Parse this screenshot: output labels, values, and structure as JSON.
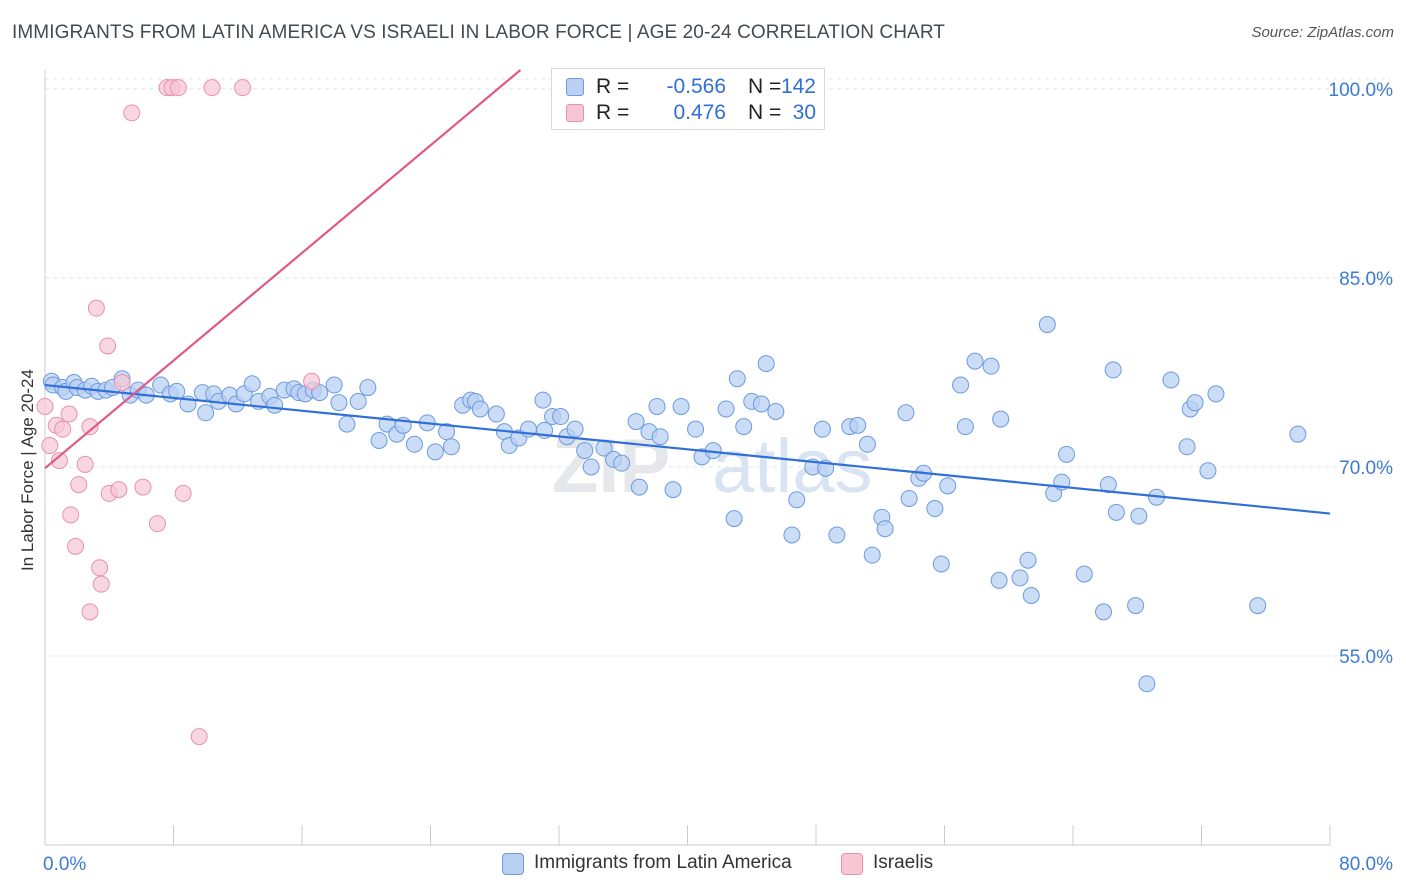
{
  "header": {
    "title": "IMMIGRANTS FROM LATIN AMERICA VS ISRAELI IN LABOR FORCE | AGE 20-24 CORRELATION CHART",
    "source": "Source: ZipAtlas.com"
  },
  "legend_box": {
    "rows": [
      {
        "r_label": "R =",
        "r_value": "-0.566",
        "n_label": "N =",
        "n_value": "142"
      },
      {
        "r_label": "R =",
        "r_value": "0.476",
        "n_label": "N =",
        "n_value": "30"
      }
    ]
  },
  "bottom_legend": [
    {
      "label": "Immigrants from Latin America"
    },
    {
      "label": "Israelis"
    }
  ],
  "colors": {
    "blue_fill": "#b9d0f3",
    "blue_stroke": "#6b9be0",
    "blue_line": "#2f6fd6",
    "pink_fill": "#f7c6d4",
    "pink_stroke": "#e890ad",
    "pink_line": "#e0588a",
    "tick_label": "#3d7bd4",
    "grid": "#e1e4e8",
    "axis": "#c8ccd2"
  },
  "chart_data": {
    "type": "scatter",
    "title": "IMMIGRANTS FROM LATIN AMERICA VS ISRAELI IN LABOR FORCE | AGE 20-24 CORRELATION CHART",
    "xlabel": "",
    "ylabel": "In Labor Force | Age 20-24",
    "xlim": [
      0,
      80
    ],
    "ylim": [
      40,
      101.5
    ],
    "x_tick_labels": [
      {
        "value": 0,
        "label": "0.0%"
      },
      {
        "value": 80,
        "label": "80.0%"
      }
    ],
    "y_ticks": [
      {
        "value": 100,
        "label": "100.0%"
      },
      {
        "value": 85,
        "label": "85.0%"
      },
      {
        "value": 70,
        "label": "70.0%"
      },
      {
        "value": 55,
        "label": "55.0%"
      }
    ],
    "grid": true,
    "watermark": "ZIPatlas",
    "series": [
      {
        "name": "Immigrants from Latin America",
        "r": -0.566,
        "n": 142,
        "trend": {
          "x": [
            0,
            80
          ],
          "y": [
            76.5,
            66.3
          ]
        },
        "points": [
          [
            0.4,
            76.8
          ],
          [
            0.5,
            76.5
          ],
          [
            1.1,
            76.3
          ],
          [
            1.3,
            76.0
          ],
          [
            1.8,
            76.7
          ],
          [
            2.0,
            76.3
          ],
          [
            2.5,
            76.1
          ],
          [
            2.9,
            76.4
          ],
          [
            3.3,
            76.0
          ],
          [
            3.8,
            76.1
          ],
          [
            4.2,
            76.3
          ],
          [
            4.8,
            77.0
          ],
          [
            5.3,
            75.7
          ],
          [
            5.8,
            76.1
          ],
          [
            6.3,
            75.7
          ],
          [
            7.2,
            76.5
          ],
          [
            7.8,
            75.8
          ],
          [
            8.2,
            76.0
          ],
          [
            8.9,
            75.0
          ],
          [
            9.8,
            75.9
          ],
          [
            10.0,
            74.3
          ],
          [
            10.5,
            75.8
          ],
          [
            10.8,
            75.2
          ],
          [
            11.5,
            75.7
          ],
          [
            11.9,
            75.0
          ],
          [
            12.4,
            75.8
          ],
          [
            12.9,
            76.6
          ],
          [
            13.3,
            75.2
          ],
          [
            14.0,
            75.6
          ],
          [
            14.3,
            74.9
          ],
          [
            14.9,
            76.1
          ],
          [
            15.5,
            76.2
          ],
          [
            15.8,
            75.9
          ],
          [
            16.2,
            75.8
          ],
          [
            16.7,
            76.1
          ],
          [
            17.1,
            75.9
          ],
          [
            18.0,
            76.5
          ],
          [
            18.3,
            75.1
          ],
          [
            18.8,
            73.4
          ],
          [
            19.5,
            75.2
          ],
          [
            20.1,
            76.3
          ],
          [
            20.8,
            72.1
          ],
          [
            21.3,
            73.4
          ],
          [
            21.9,
            72.6
          ],
          [
            22.3,
            73.3
          ],
          [
            23.0,
            71.8
          ],
          [
            23.8,
            73.5
          ],
          [
            24.3,
            71.2
          ],
          [
            25.0,
            72.8
          ],
          [
            25.3,
            71.6
          ],
          [
            26.0,
            74.9
          ],
          [
            26.5,
            75.3
          ],
          [
            26.8,
            75.2
          ],
          [
            27.1,
            74.6
          ],
          [
            28.1,
            74.2
          ],
          [
            28.6,
            72.8
          ],
          [
            28.9,
            71.7
          ],
          [
            29.5,
            72.3
          ],
          [
            30.1,
            73.0
          ],
          [
            31.0,
            75.3
          ],
          [
            31.1,
            72.9
          ],
          [
            31.6,
            74.0
          ],
          [
            32.1,
            74.0
          ],
          [
            32.5,
            72.4
          ],
          [
            33.0,
            73.0
          ],
          [
            33.6,
            71.3
          ],
          [
            34.0,
            70.0
          ],
          [
            34.8,
            71.5
          ],
          [
            35.4,
            70.6
          ],
          [
            35.9,
            70.3
          ],
          [
            36.8,
            73.6
          ],
          [
            37.0,
            68.4
          ],
          [
            37.6,
            72.8
          ],
          [
            38.1,
            74.8
          ],
          [
            38.3,
            72.4
          ],
          [
            39.1,
            68.2
          ],
          [
            39.6,
            74.8
          ],
          [
            40.5,
            73.0
          ],
          [
            40.9,
            70.8
          ],
          [
            41.6,
            71.3
          ],
          [
            42.4,
            74.6
          ],
          [
            42.9,
            65.9
          ],
          [
            43.1,
            77.0
          ],
          [
            43.5,
            73.2
          ],
          [
            44.0,
            75.2
          ],
          [
            44.6,
            75.0
          ],
          [
            44.9,
            78.2
          ],
          [
            45.5,
            74.4
          ],
          [
            46.5,
            64.6
          ],
          [
            46.8,
            67.4
          ],
          [
            47.8,
            70.0
          ],
          [
            48.4,
            73.0
          ],
          [
            48.6,
            69.9
          ],
          [
            49.3,
            64.6
          ],
          [
            50.1,
            73.2
          ],
          [
            50.6,
            73.3
          ],
          [
            51.2,
            71.8
          ],
          [
            51.5,
            63.0
          ],
          [
            52.1,
            66.0
          ],
          [
            52.3,
            65.1
          ],
          [
            53.6,
            74.3
          ],
          [
            53.8,
            67.5
          ],
          [
            54.4,
            69.1
          ],
          [
            54.7,
            69.5
          ],
          [
            55.4,
            66.7
          ],
          [
            55.8,
            62.3
          ],
          [
            56.2,
            68.5
          ],
          [
            57.0,
            76.5
          ],
          [
            57.3,
            73.2
          ],
          [
            57.9,
            78.4
          ],
          [
            58.9,
            78.0
          ],
          [
            59.4,
            61.0
          ],
          [
            59.5,
            73.8
          ],
          [
            60.7,
            61.2
          ],
          [
            61.2,
            62.6
          ],
          [
            61.4,
            59.8
          ],
          [
            62.4,
            81.3
          ],
          [
            62.8,
            67.9
          ],
          [
            63.3,
            68.8
          ],
          [
            63.6,
            71.0
          ],
          [
            64.7,
            61.5
          ],
          [
            65.9,
            58.5
          ],
          [
            66.2,
            68.6
          ],
          [
            66.5,
            77.7
          ],
          [
            66.7,
            66.4
          ],
          [
            67.9,
            59.0
          ],
          [
            68.1,
            66.1
          ],
          [
            68.6,
            52.8
          ],
          [
            69.2,
            67.6
          ],
          [
            70.1,
            76.9
          ],
          [
            71.1,
            71.6
          ],
          [
            71.3,
            74.6
          ],
          [
            71.6,
            75.1
          ],
          [
            72.4,
            69.7
          ],
          [
            72.9,
            75.8
          ],
          [
            75.5,
            59.0
          ],
          [
            78.0,
            72.6
          ]
        ]
      },
      {
        "name": "Israelis",
        "r": 0.476,
        "n": 30,
        "trend": {
          "x": [
            0,
            29.6
          ],
          "y": [
            69.9,
            101.5
          ]
        },
        "points": [
          [
            0.0,
            74.8
          ],
          [
            0.3,
            71.7
          ],
          [
            0.7,
            73.3
          ],
          [
            0.9,
            70.5
          ],
          [
            1.1,
            73.0
          ],
          [
            1.5,
            74.2
          ],
          [
            1.6,
            66.2
          ],
          [
            1.9,
            63.7
          ],
          [
            2.1,
            68.6
          ],
          [
            2.5,
            70.2
          ],
          [
            2.8,
            73.2
          ],
          [
            2.8,
            58.5
          ],
          [
            3.2,
            82.6
          ],
          [
            3.4,
            62.0
          ],
          [
            3.5,
            60.7
          ],
          [
            3.9,
            79.6
          ],
          [
            4.0,
            67.9
          ],
          [
            4.6,
            68.2
          ],
          [
            4.8,
            76.7
          ],
          [
            5.4,
            98.1
          ],
          [
            6.1,
            68.4
          ],
          [
            7.0,
            65.5
          ],
          [
            7.6,
            100.1
          ],
          [
            7.9,
            100.1
          ],
          [
            8.3,
            100.1
          ],
          [
            8.6,
            67.9
          ],
          [
            9.6,
            48.6
          ],
          [
            10.4,
            100.1
          ],
          [
            12.3,
            100.1
          ],
          [
            16.6,
            76.8
          ]
        ]
      }
    ]
  }
}
